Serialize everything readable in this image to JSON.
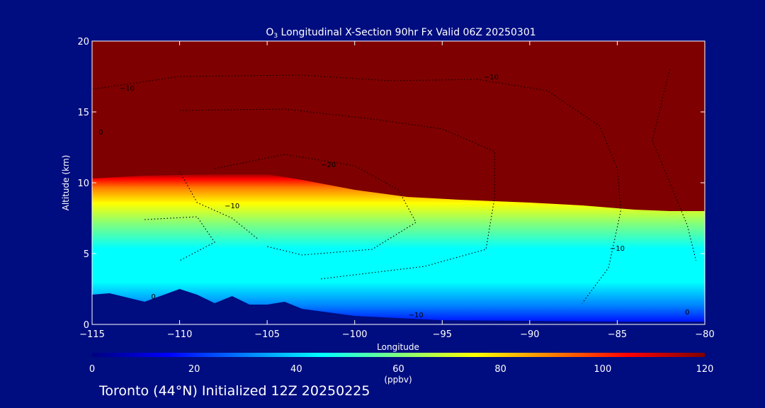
{
  "chart_data": {
    "type": "heatmap",
    "title_species": "O",
    "title_subscript": "3",
    "title_rest": " Longitudinal X-Section 90hr  Fx Valid 06Z 20250301",
    "xlabel": "Longitude",
    "ylabel": "Altitude (km)",
    "xlim": [
      -115,
      -80
    ],
    "ylim": [
      0,
      20
    ],
    "x_ticks": [
      -115,
      -110,
      -105,
      -100,
      -95,
      -90,
      -85,
      -80
    ],
    "x_tick_labels": [
      "−115",
      "−110",
      "−105",
      "−100",
      "−95",
      "−90",
      "−85",
      "−80"
    ],
    "y_ticks": [
      0,
      5,
      10,
      15,
      20
    ],
    "y_tick_labels": [
      "0",
      "5",
      "10",
      "15",
      "20"
    ],
    "colorbar": {
      "min": 0,
      "max": 120,
      "ticks": [
        0,
        20,
        40,
        60,
        80,
        100,
        120
      ],
      "tick_labels": [
        "0",
        "20",
        "40",
        "60",
        "80",
        "100",
        "120"
      ],
      "unit": "(ppbv)",
      "colors": [
        "#00007f",
        "#0000ff",
        "#007fff",
        "#00ffff",
        "#7fff7f",
        "#ffff00",
        "#ff7f00",
        "#ff0000",
        "#7f0000"
      ]
    },
    "tropopause": {
      "lon": [
        -115,
        -112,
        -108,
        -105,
        -103,
        -100,
        -97,
        -94,
        -90,
        -87,
        -84,
        -82,
        -80
      ],
      "alt": [
        10.3,
        10.5,
        10.6,
        10.6,
        10.2,
        9.5,
        9.0,
        8.8,
        8.6,
        8.4,
        8.1,
        8.0,
        8.0
      ]
    },
    "terrain": {
      "lon": [
        -115,
        -114,
        -112,
        -110,
        -109,
        -108,
        -107,
        -106,
        -105,
        -104,
        -103,
        -100,
        -95,
        -90,
        -85,
        -80
      ],
      "alt": [
        2.1,
        2.2,
        1.6,
        2.5,
        2.1,
        1.5,
        2.0,
        1.4,
        1.4,
        1.6,
        1.1,
        0.6,
        0.3,
        0.25,
        0.2,
        0.2
      ]
    },
    "contour_labels": [
      {
        "lon": -113,
        "alt": 16.5,
        "text": "−10"
      },
      {
        "lon": -114.5,
        "alt": 13.4,
        "text": "0"
      },
      {
        "lon": -107,
        "alt": 8.2,
        "text": "−10"
      },
      {
        "lon": -101.5,
        "alt": 11.1,
        "text": "−20"
      },
      {
        "lon": -92.2,
        "alt": 17.3,
        "text": "−10"
      },
      {
        "lon": -85,
        "alt": 5.2,
        "text": "−10"
      },
      {
        "lon": -96.5,
        "alt": 0.5,
        "text": "−10"
      },
      {
        "lon": -111.5,
        "alt": 1.8,
        "text": "0"
      },
      {
        "lon": -81,
        "alt": 0.7,
        "text": "0"
      }
    ]
  },
  "footer": {
    "text": "Toronto (44°N) Initialized 12Z 20250225"
  }
}
